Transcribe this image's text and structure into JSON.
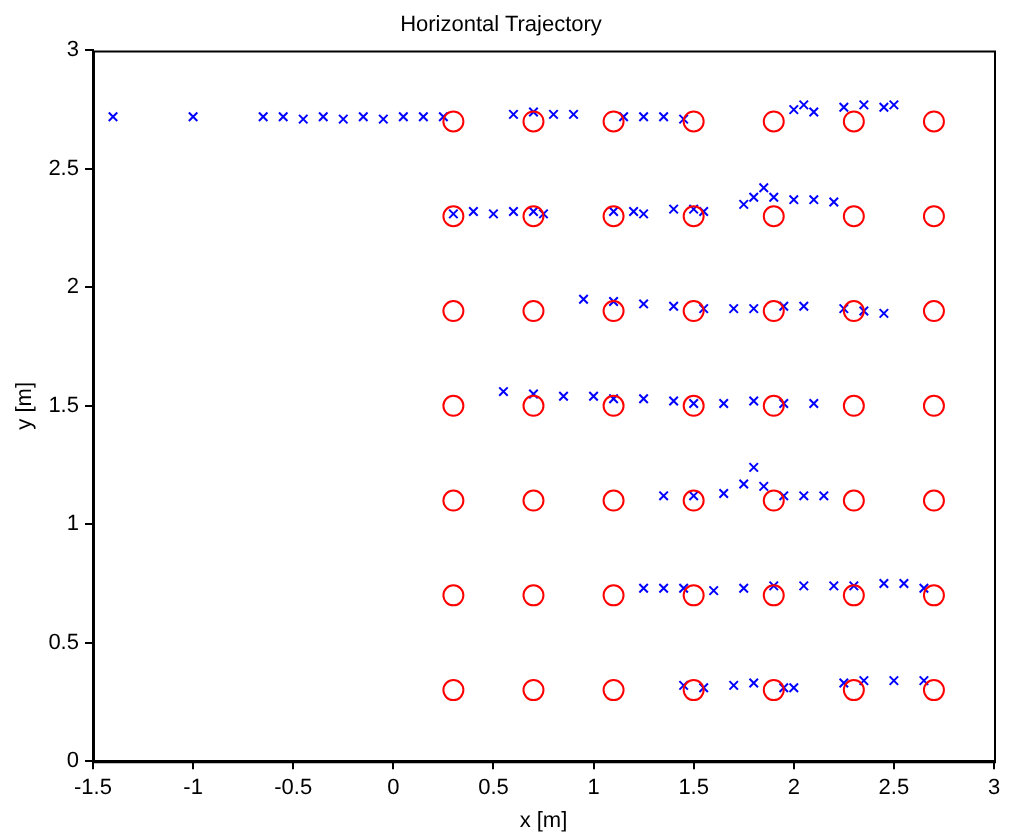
{
  "chart_data": {
    "type": "scatter",
    "title": "Horizontal Trajectory",
    "xlabel": "x [m]",
    "ylabel": "y [m]",
    "xlim": [
      -1.5,
      3
    ],
    "xticks": [
      -1.5,
      -1,
      -0.5,
      0,
      0.5,
      1,
      1.5,
      2,
      2.5,
      3
    ],
    "ylim": [
      0,
      3
    ],
    "yticks": [
      0,
      0.5,
      1,
      1.5,
      2,
      2.5,
      3
    ],
    "grid": false,
    "legend": false,
    "series": [
      {
        "color": "#ff0000",
        "marker": "circle",
        "x": [
          0.3,
          0.7,
          1.1,
          1.5,
          1.9,
          2.3,
          2.7,
          0.3,
          0.7,
          1.1,
          1.5,
          1.9,
          2.3,
          2.7,
          0.3,
          0.7,
          1.1,
          1.5,
          1.9,
          2.3,
          2.7,
          0.3,
          0.7,
          1.1,
          1.5,
          1.9,
          2.3,
          2.7,
          0.3,
          0.7,
          1.1,
          1.5,
          1.9,
          2.3,
          2.7,
          0.3,
          0.7,
          1.1,
          1.5,
          1.9,
          2.3,
          2.7,
          0.3,
          0.7,
          1.1,
          1.5,
          1.9,
          2.3,
          2.7
        ],
        "values": [
          0.3,
          0.3,
          0.3,
          0.3,
          0.3,
          0.3,
          0.3,
          0.7,
          0.7,
          0.7,
          0.7,
          0.7,
          0.7,
          0.7,
          1.1,
          1.1,
          1.1,
          1.1,
          1.1,
          1.1,
          1.1,
          1.5,
          1.5,
          1.5,
          1.5,
          1.5,
          1.5,
          1.5,
          1.9,
          1.9,
          1.9,
          1.9,
          1.9,
          1.9,
          1.9,
          2.3,
          2.3,
          2.3,
          2.3,
          2.3,
          2.3,
          2.3,
          2.7,
          2.7,
          2.7,
          2.7,
          2.7,
          2.7,
          2.7
        ]
      },
      {
        "color": "#0000ff",
        "marker": "cross",
        "x": [
          -1.4,
          -1.0,
          -0.65,
          -0.55,
          -0.45,
          -0.35,
          -0.25,
          -0.15,
          -0.05,
          0.05,
          0.15,
          0.25,
          0.6,
          0.7,
          0.8,
          0.9,
          1.15,
          1.25,
          1.35,
          1.45,
          2.0,
          2.05,
          2.1,
          2.25,
          2.35,
          2.45,
          2.5,
          0.3,
          0.4,
          0.5,
          0.6,
          0.7,
          0.75,
          1.1,
          1.2,
          1.25,
          1.4,
          1.5,
          1.55,
          1.75,
          1.8,
          1.85,
          1.9,
          2.0,
          2.1,
          2.2,
          0.95,
          1.1,
          1.25,
          1.4,
          1.55,
          1.7,
          1.8,
          1.95,
          2.05,
          2.25,
          2.35,
          2.45,
          0.55,
          0.7,
          0.85,
          1.0,
          1.1,
          1.25,
          1.4,
          1.5,
          1.65,
          1.8,
          1.95,
          2.1,
          1.35,
          1.5,
          1.65,
          1.75,
          1.8,
          1.85,
          1.95,
          2.05,
          2.15,
          1.25,
          1.35,
          1.45,
          1.6,
          1.75,
          1.9,
          2.05,
          2.2,
          2.3,
          2.45,
          2.55,
          2.65,
          1.45,
          1.55,
          1.7,
          1.8,
          1.95,
          2.0,
          2.25,
          2.35,
          2.5,
          2.65
        ],
        "values": [
          2.72,
          2.72,
          2.72,
          2.72,
          2.71,
          2.72,
          2.71,
          2.72,
          2.71,
          2.72,
          2.72,
          2.72,
          2.73,
          2.74,
          2.73,
          2.73,
          2.72,
          2.72,
          2.72,
          2.71,
          2.75,
          2.77,
          2.74,
          2.76,
          2.77,
          2.76,
          2.77,
          2.31,
          2.32,
          2.31,
          2.32,
          2.32,
          2.31,
          2.32,
          2.32,
          2.31,
          2.33,
          2.33,
          2.32,
          2.35,
          2.38,
          2.42,
          2.38,
          2.37,
          2.37,
          2.36,
          1.95,
          1.94,
          1.93,
          1.92,
          1.91,
          1.91,
          1.91,
          1.92,
          1.92,
          1.91,
          1.9,
          1.89,
          1.56,
          1.55,
          1.54,
          1.54,
          1.53,
          1.53,
          1.52,
          1.51,
          1.51,
          1.52,
          1.51,
          1.51,
          1.12,
          1.12,
          1.13,
          1.17,
          1.24,
          1.16,
          1.12,
          1.12,
          1.12,
          0.73,
          0.73,
          0.73,
          0.72,
          0.73,
          0.74,
          0.74,
          0.74,
          0.74,
          0.75,
          0.75,
          0.73,
          0.32,
          0.31,
          0.32,
          0.33,
          0.31,
          0.31,
          0.33,
          0.34,
          0.34,
          0.34
        ]
      }
    ]
  }
}
